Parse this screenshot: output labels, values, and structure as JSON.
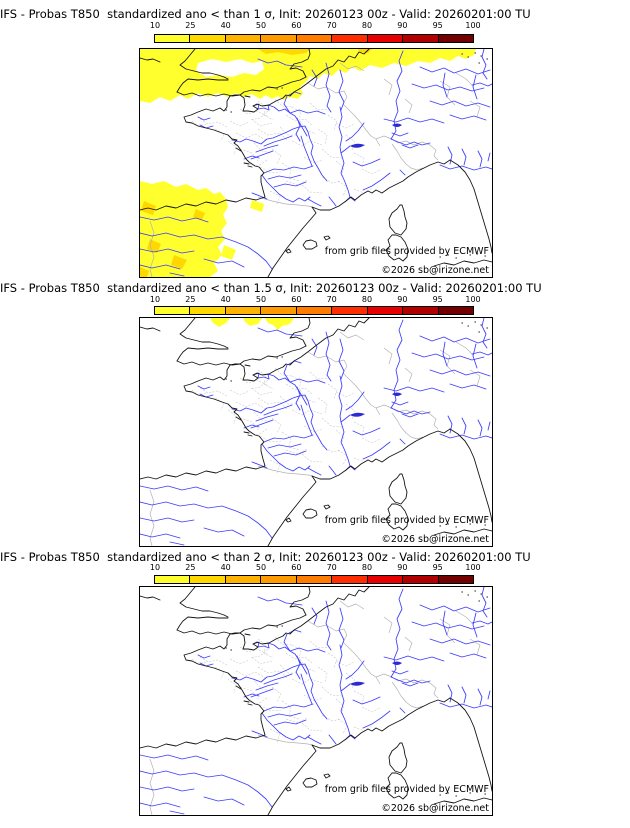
{
  "panels": [
    {
      "title": "IFS - Probas T850  standardized ano < than 1 σ, Init: 20260123 00z - Valid: 20260201:00 TU",
      "sigma_threshold": "1 σ",
      "shading_note": "yellow probability area over southern England, the Channel, Benelux and NW Germany (with small orange cores at top edge); yellow area with orange cores over NW Spain / SW Bay of Biscay"
    },
    {
      "title": "IFS - Probas T850  standardized ano < than 1.5 σ, Init: 20260123 00z - Valid: 20260201:00 TU",
      "sigma_threshold": "1.5 σ",
      "shading_note": "three small yellow patches at the northern map edge"
    },
    {
      "title": "IFS - Probas T850  standardized ano < than 2 σ, Init: 20260123 00z - Valid: 20260201:00 TU",
      "sigma_threshold": "2 σ",
      "shading_note": "no shaded areas"
    }
  ],
  "colorbar": {
    "tick_labels": [
      "10",
      "25",
      "40",
      "50",
      "60",
      "70",
      "80",
      "90",
      "95",
      "100"
    ],
    "colors": [
      "#ffff2e",
      "#ffd800",
      "#ffb200",
      "#ff9a00",
      "#ff7c00",
      "#ff2e00",
      "#e60000",
      "#b20000",
      "#730000"
    ]
  },
  "credits": {
    "line1": "from grib files provided by ECMWF",
    "line2": "©2026 sb@irizone.net"
  },
  "map_colors": {
    "river": "#3c3cff",
    "coast": "#151515",
    "admin_border": "#c7c7c7",
    "country_border": "#b2b2b2",
    "shading_yellow": "#ffff2e",
    "shading_orange": "#ffd800"
  }
}
